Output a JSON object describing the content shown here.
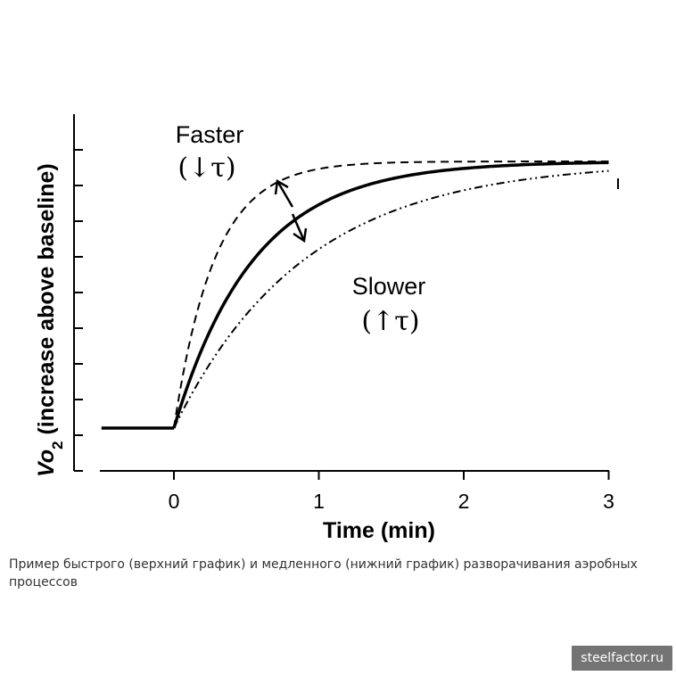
{
  "chart_data": {
    "type": "line",
    "xlabel": "Time (min)",
    "ylabel_main": "Vo",
    "ylabel_sub": "2",
    "ylabel_rest": " (increase above baseline)",
    "xlim": [
      -0.5,
      3
    ],
    "xticks": [
      0,
      1,
      2,
      3
    ],
    "yticks_count": 10,
    "ylim": [
      0,
      1
    ],
    "baseline_start": -0.5,
    "series": [
      {
        "style": "dashed",
        "tau": 0.28
      },
      {
        "style": "solid",
        "tau": 0.55
      },
      {
        "style": "dash-dot-dot",
        "tau": 0.9
      }
    ],
    "annotations": {
      "faster": "Faster",
      "faster_symbol": "(↓τ)",
      "slower": "Slower",
      "slower_symbol": "(↑τ)"
    },
    "grid": false
  },
  "caption": "Пример быстрого (верхний график) и медленного (нижний график) разворачивания аэробных процессов",
  "watermark": "steelfactor.ru"
}
